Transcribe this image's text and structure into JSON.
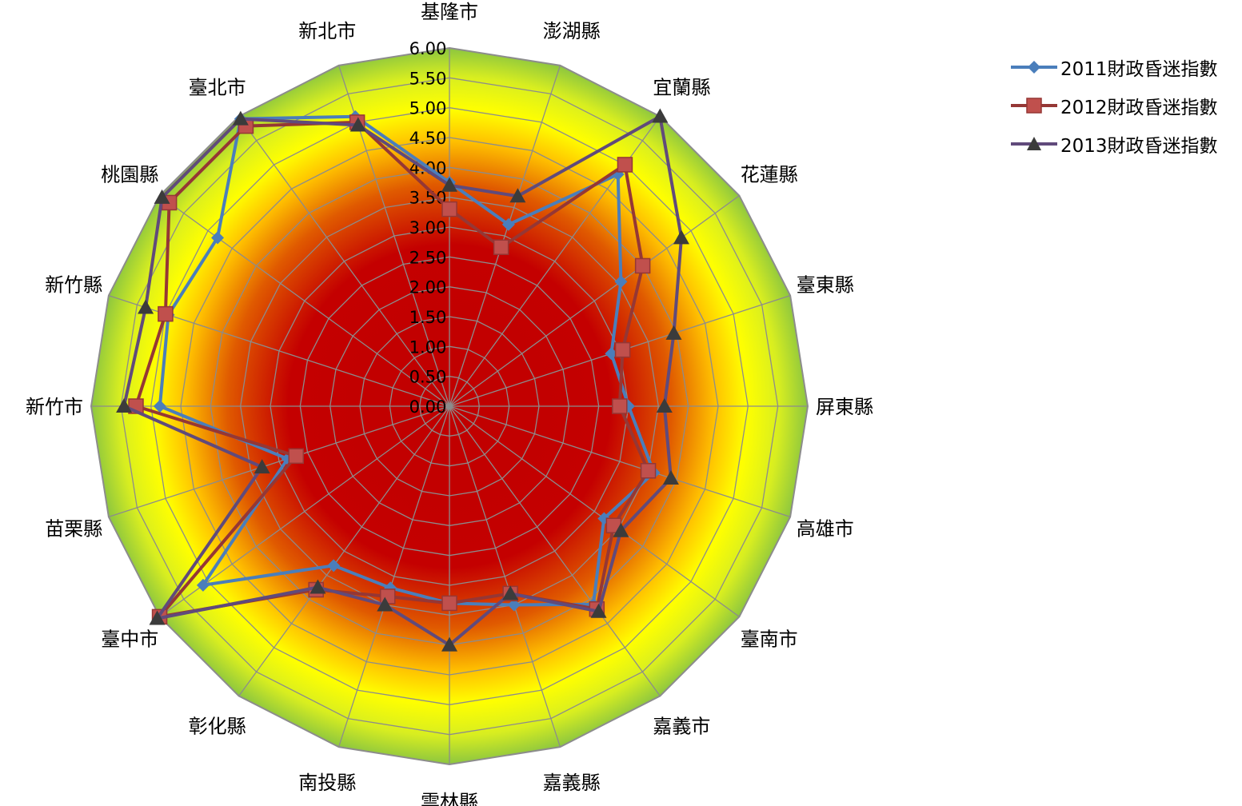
{
  "chart_data": {
    "type": "radar",
    "title": "",
    "categories": [
      "基隆市",
      "澎湖縣",
      "宜蘭縣",
      "花蓮縣",
      "臺東縣",
      "屏東縣",
      "高雄市",
      "臺南市",
      "嘉義市",
      "嘉義縣",
      "雲林縣",
      "南投縣",
      "彰化縣",
      "臺中市",
      "苗栗縣",
      "新竹市",
      "新竹縣",
      "桃園縣",
      "臺北市",
      "新北市"
    ],
    "ticks": [
      "0.00",
      "0.50",
      "1.00",
      "1.50",
      "2.00",
      "2.50",
      "3.00",
      "3.50",
      "4.00",
      "4.50",
      "5.00",
      "5.50",
      "6.00"
    ],
    "rlim": [
      0,
      6
    ],
    "grid": true,
    "legend": "top-right",
    "series": [
      {
        "name": "2011財政昏迷指數",
        "color": "#4a7ebb",
        "marker": "diamond",
        "values": [
          3.75,
          3.2,
          4.8,
          3.55,
          2.85,
          3.0,
          3.6,
          3.2,
          4.1,
          3.5,
          3.3,
          3.2,
          3.3,
          5.1,
          2.85,
          4.85,
          4.95,
          4.8,
          5.95,
          5.1
        ]
      },
      {
        "name": "2012財政昏迷指數",
        "color": "#be4b48",
        "marker": "square",
        "values": [
          3.3,
          2.8,
          5.0,
          4.0,
          3.05,
          2.85,
          3.5,
          3.4,
          4.2,
          3.3,
          3.3,
          3.35,
          3.8,
          6.0,
          2.7,
          5.25,
          5.0,
          5.8,
          5.8,
          5.0
        ]
      },
      {
        "name": "2013財政昏迷指數",
        "color": "#604a7b",
        "marker": "triangle",
        "values": [
          3.7,
          3.7,
          6.0,
          4.8,
          3.95,
          3.6,
          3.9,
          3.55,
          4.25,
          3.3,
          4.0,
          3.5,
          3.75,
          6.05,
          3.3,
          5.45,
          5.35,
          5.95,
          5.95,
          4.95
        ]
      }
    ]
  }
}
